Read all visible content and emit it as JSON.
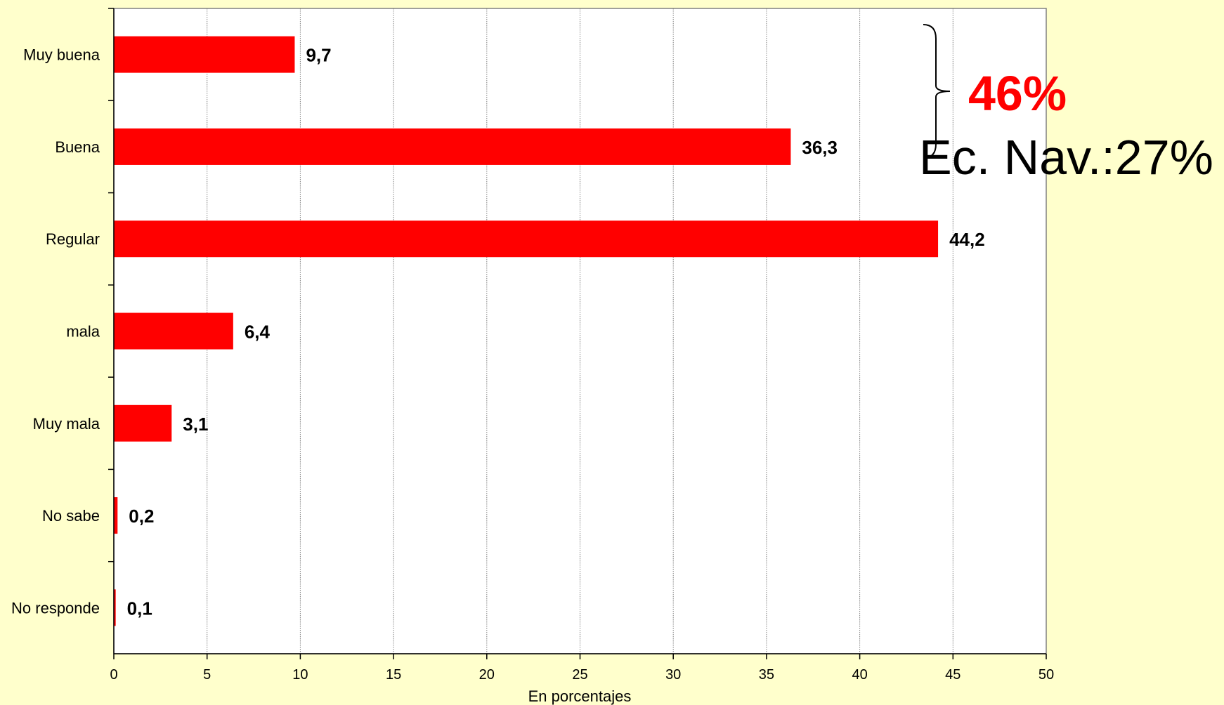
{
  "colors": {
    "background": "#ffffcc",
    "plot_background": "#ffffff",
    "bar": "#ff0000",
    "accent_text": "#ff0000",
    "grid": "#808080"
  },
  "chart_data": {
    "type": "bar",
    "orientation": "horizontal",
    "categories": [
      "Muy buena",
      "Buena",
      "Regular",
      "mala",
      "Muy mala",
      "No sabe",
      "No responde"
    ],
    "values": [
      9.7,
      36.3,
      44.2,
      6.4,
      3.1,
      0.2,
      0.1
    ],
    "value_labels": [
      "9,7",
      "36,3",
      "44,2",
      "6,4",
      "3,1",
      "0,2",
      "0,1"
    ],
    "xlabel": "En porcentajes",
    "xlim": [
      0,
      50
    ],
    "xticks": [
      0,
      5,
      10,
      15,
      20,
      25,
      30,
      35,
      40,
      45,
      50
    ],
    "grid": "vertical",
    "annotations": {
      "bracket_total": "46%",
      "comparison": "Ec. Nav.:27%"
    }
  }
}
